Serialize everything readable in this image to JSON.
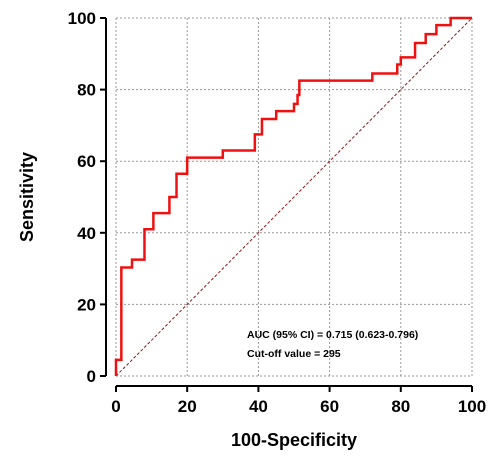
{
  "chart_data": {
    "type": "line",
    "xlabel": "100-Specificity",
    "ylabel": "Sensitivity",
    "xlim": [
      0,
      100
    ],
    "ylim": [
      0,
      100
    ],
    "x_ticks": [
      "0",
      "20",
      "40",
      "60",
      "80",
      "100"
    ],
    "y_ticks": [
      "0",
      "20",
      "40",
      "60",
      "80",
      "100"
    ],
    "grid": true,
    "colors": {
      "roc": "#ee1111",
      "reference": "#8b1a1a",
      "grid": "#999999"
    },
    "annotations": [
      "AUC (95% CI) = 0.715 (0.623-0.796)",
      "Cut-off value = 295"
    ],
    "series": [
      {
        "style": "step",
        "points": [
          [
            0,
            0
          ],
          [
            0,
            4.5
          ],
          [
            1.5,
            4.5
          ],
          [
            1.5,
            30.3
          ],
          [
            4.5,
            30.3
          ],
          [
            4.5,
            32.5
          ],
          [
            8,
            32.5
          ],
          [
            8,
            41
          ],
          [
            10.5,
            41
          ],
          [
            10.5,
            45.5
          ],
          [
            15,
            45.5
          ],
          [
            15,
            50
          ],
          [
            17,
            50
          ],
          [
            17,
            56.5
          ],
          [
            20,
            56.5
          ],
          [
            20,
            61
          ],
          [
            30,
            61
          ],
          [
            30,
            63
          ],
          [
            39,
            63
          ],
          [
            39,
            67.5
          ],
          [
            41,
            67.5
          ],
          [
            41,
            71.8
          ],
          [
            45,
            71.8
          ],
          [
            45,
            74
          ],
          [
            50,
            74
          ],
          [
            50,
            76
          ],
          [
            51,
            76
          ],
          [
            51,
            78.5
          ],
          [
            51.5,
            78.5
          ],
          [
            51.5,
            82.5
          ],
          [
            72,
            82.5
          ],
          [
            72,
            84.5
          ],
          [
            79,
            84.5
          ],
          [
            79,
            87
          ],
          [
            80,
            87
          ],
          [
            80,
            89
          ],
          [
            84,
            89
          ],
          [
            84,
            93
          ],
          [
            87,
            93
          ],
          [
            87,
            95.5
          ],
          [
            90,
            95.5
          ],
          [
            90,
            98
          ],
          [
            94,
            98
          ],
          [
            94,
            100
          ],
          [
            100,
            100
          ]
        ]
      },
      {
        "style": "dashed",
        "points": [
          [
            0,
            0
          ],
          [
            100,
            100
          ]
        ]
      }
    ]
  }
}
